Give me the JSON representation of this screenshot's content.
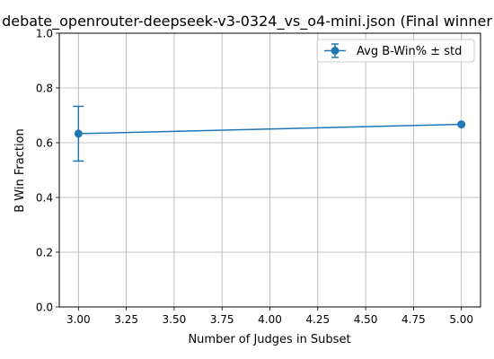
{
  "chart_data": {
    "type": "line",
    "title": "debate_openrouter-deepseek-v3-0324_vs_o4-mini.json (Final winner",
    "xlabel": "Number of Judges in Subset",
    "ylabel": "B Win Fraction",
    "xlim": [
      2.9,
      5.1
    ],
    "ylim": [
      0.0,
      1.0
    ],
    "xticks": [
      3.0,
      3.25,
      3.5,
      3.75,
      4.0,
      4.25,
      4.5,
      4.75,
      5.0
    ],
    "xtick_labels": [
      "3.00",
      "3.25",
      "3.50",
      "3.75",
      "4.00",
      "4.25",
      "4.50",
      "4.75",
      "5.00"
    ],
    "yticks": [
      0.0,
      0.2,
      0.4,
      0.6,
      0.8,
      1.0
    ],
    "ytick_labels": [
      "0.0",
      "0.2",
      "0.4",
      "0.6",
      "0.8",
      "1.0"
    ],
    "grid": true,
    "legend_position": "top-right",
    "series": [
      {
        "name": "Avg B-Win% ± std",
        "color": "#1f77b4",
        "marker": "circle",
        "x": [
          3.0,
          5.0
        ],
        "y": [
          0.633,
          0.667
        ],
        "yerr": [
          0.1,
          0.0
        ]
      }
    ]
  }
}
